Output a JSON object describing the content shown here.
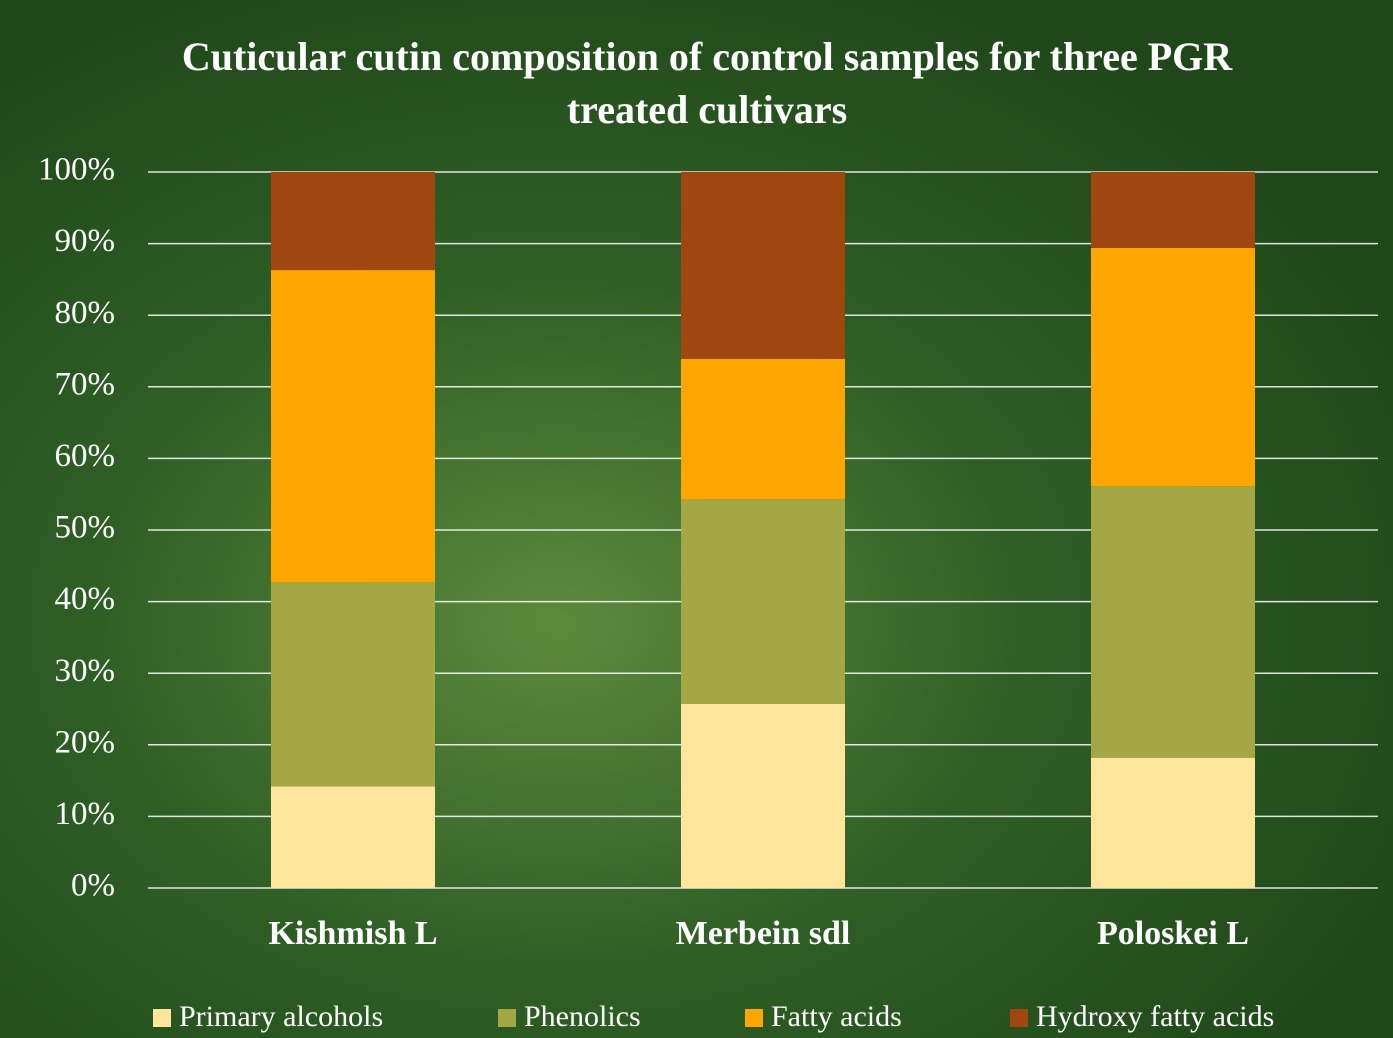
{
  "chart_data": {
    "type": "stacked-bar",
    "title": "Cuticular cutin composition of control samples for three PGR treated cultivars",
    "categories": [
      "Kishmish L",
      "Merbein sdl",
      "Poloskei L"
    ],
    "series": [
      {
        "name": "Primary alcohols",
        "color": "#fde69b",
        "values": [
          14.2,
          25.7,
          18.2
        ]
      },
      {
        "name": "Phenolics",
        "color": "#a3a845",
        "values": [
          28.5,
          28.6,
          37.9
        ]
      },
      {
        "name": "Fatty acids",
        "color": "#ffa500",
        "values": [
          43.6,
          19.6,
          33.3
        ]
      },
      {
        "name": "Hydroxy fatty acids",
        "color": "#a0460f",
        "values": [
          13.7,
          26.1,
          10.6
        ]
      }
    ],
    "ylim": [
      0,
      100
    ],
    "yticks": [
      {
        "value": 0,
        "label": "0%"
      },
      {
        "value": 10,
        "label": "10%"
      },
      {
        "value": 20,
        "label": "20%"
      },
      {
        "value": 30,
        "label": "30%"
      },
      {
        "value": 40,
        "label": "40%"
      },
      {
        "value": 50,
        "label": "50%"
      },
      {
        "value": 60,
        "label": "60%"
      },
      {
        "value": 70,
        "label": "70%"
      },
      {
        "value": 80,
        "label": "80%"
      },
      {
        "value": 90,
        "label": "90%"
      },
      {
        "value": 100,
        "label": "100%"
      }
    ],
    "grid": true,
    "legend": "bottom"
  }
}
